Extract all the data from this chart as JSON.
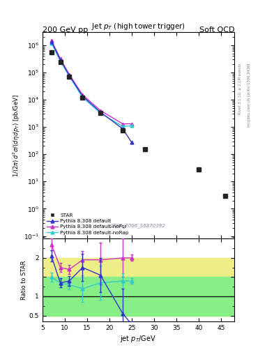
{
  "title_top_left": "200 GeV pp",
  "title_top_right": "Soft QCD",
  "plot_title": "Jet $p_T$ (high tower trigger)",
  "xlabel": "jet $p_T$/GeV",
  "ylabel_main": "$1/(2\\pi)\\, d^2\\sigma/(d\\eta\\, dp_T)$ [pb/GeV]",
  "ylabel_ratio": "Ratio to STAR",
  "watermark": "STAR_2006_S6870392",
  "right_label1": "Rivet 3.1.10, ≥ 2.1M events",
  "right_label2": "mcplots.cern.ch [arXiv:1306.3436]",
  "star_x": [
    7,
    9,
    11,
    14,
    18,
    23,
    28,
    40,
    46
  ],
  "star_y": [
    550000.0,
    240000.0,
    70000.0,
    12000.0,
    3200,
    750,
    150,
    28,
    3.0
  ],
  "pythia_default_x": [
    7,
    9,
    11,
    14,
    18,
    23,
    25
  ],
  "pythia_default_y": [
    1350000.0,
    290000.0,
    78000.0,
    13500.0,
    3500,
    850,
    270
  ],
  "pythia_noFsr_x": [
    7,
    9,
    11,
    14,
    18,
    23,
    25
  ],
  "pythia_noFsr_y": [
    1500000.0,
    320000.0,
    85000.0,
    15000.0,
    4000,
    1300,
    1300
  ],
  "pythia_noRap_x": [
    7,
    9,
    11,
    14,
    18,
    23,
    25
  ],
  "pythia_noRap_y": [
    1200000.0,
    260000.0,
    72000.0,
    12000.0,
    3200,
    1050,
    1100
  ],
  "ratio_default_x": [
    7,
    9,
    11,
    14,
    18,
    23,
    25
  ],
  "ratio_default_y": [
    2.05,
    1.35,
    1.4,
    1.75,
    1.55,
    0.55,
    0.27
  ],
  "ratio_default_yerr": [
    0.15,
    0.12,
    0.12,
    0.35,
    0.45,
    0.65,
    0.08
  ],
  "ratio_noFsr_x": [
    7,
    9,
    11,
    14,
    18,
    23,
    25
  ],
  "ratio_noFsr_y": [
    2.35,
    1.75,
    1.7,
    1.95,
    1.95,
    2.0,
    2.0
  ],
  "ratio_noFsr_yerr": [
    0.15,
    0.12,
    0.12,
    0.22,
    0.45,
    0.5,
    0.08
  ],
  "ratio_noRap_x": [
    7,
    9,
    11,
    14,
    18,
    23,
    25
  ],
  "ratio_noRap_y": [
    1.5,
    1.35,
    1.3,
    1.2,
    1.35,
    1.4,
    1.4
  ],
  "ratio_noRap_yerr": [
    0.12,
    0.12,
    0.12,
    0.35,
    0.45,
    0.2,
    0.08
  ],
  "band_yellow_lo": 0.5,
  "band_yellow_hi": 2.0,
  "band_green_lo": 0.5,
  "band_green_hi": 1.5,
  "color_star": "#222222",
  "color_default": "#3333cc",
  "color_noFsr": "#cc33cc",
  "color_noRap": "#33cccc",
  "color_yellow": "#eeee88",
  "color_green": "#88ee88",
  "ylim_main": [
    0.08,
    3000000.0
  ],
  "ylim_ratio": [
    0.35,
    2.5
  ],
  "xlim": [
    5,
    48
  ]
}
